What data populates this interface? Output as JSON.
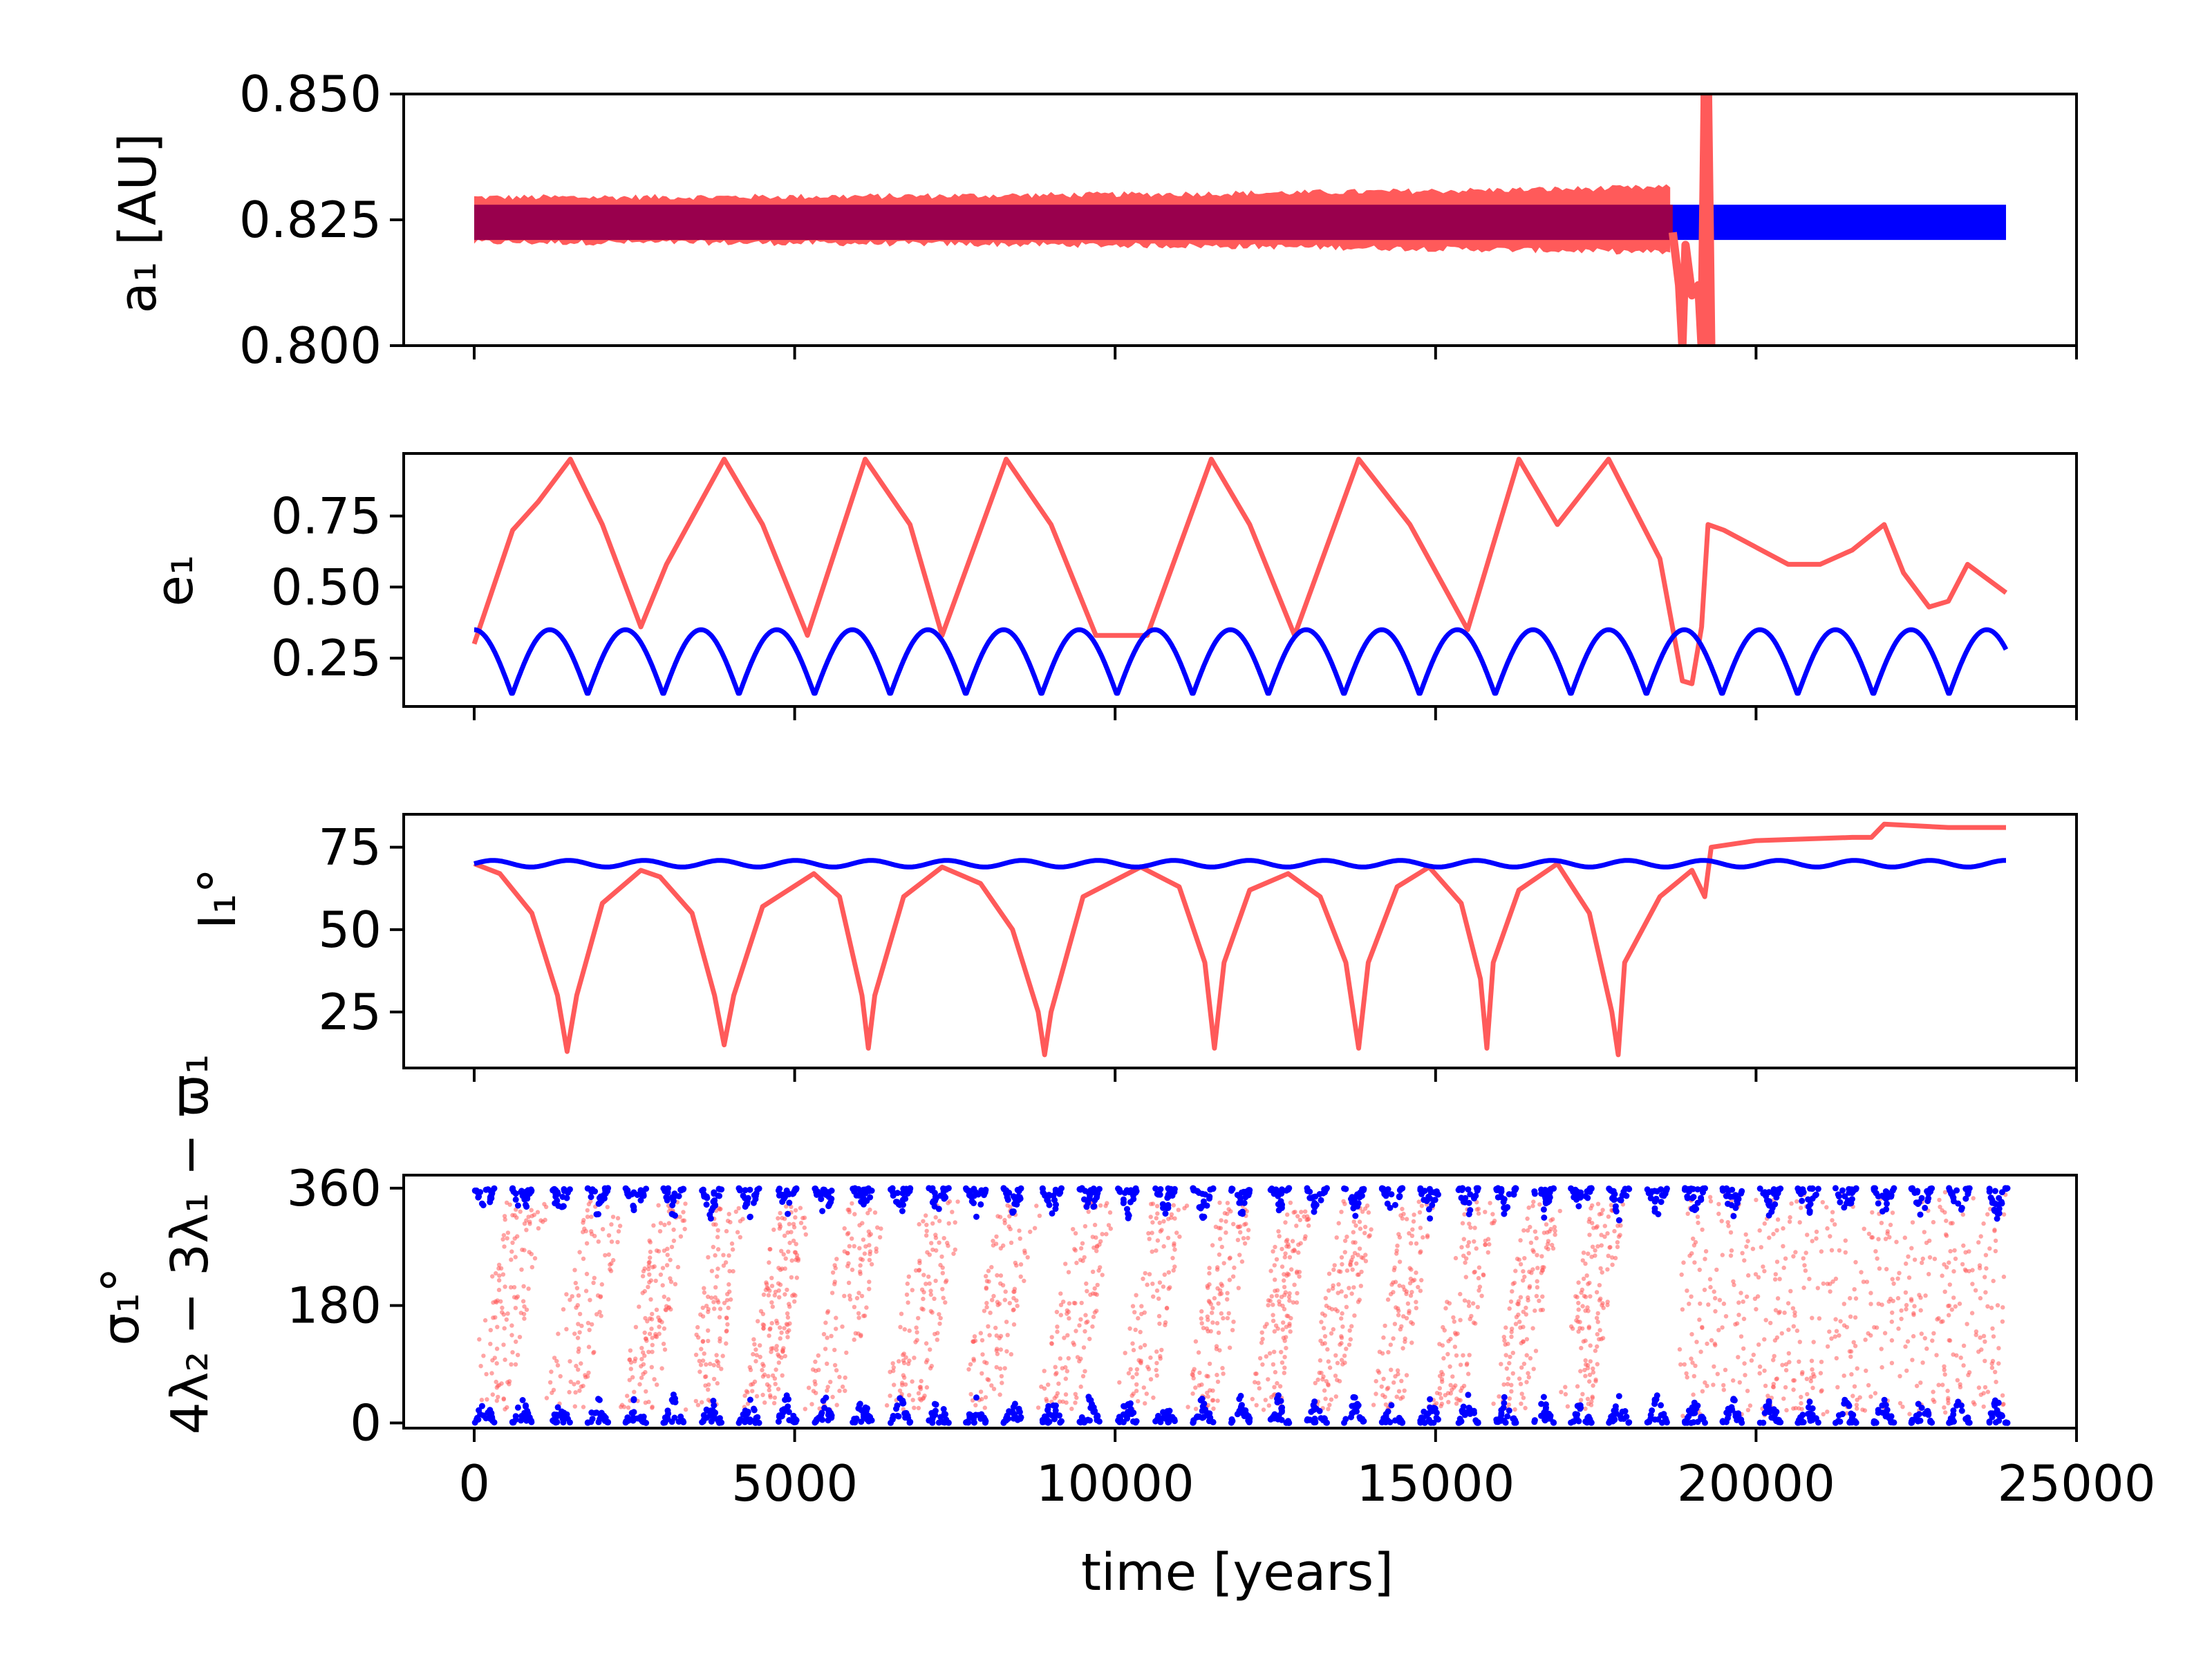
{
  "colors": {
    "red_series": "#ff5a5a",
    "blue_series": "#0000ff",
    "overlap": "#99004d",
    "axes": "#000000"
  },
  "chart_data": [
    {
      "type": "line",
      "panel": "semi-major axis",
      "ylabel": "a₁ [AU]",
      "ylim": [
        0.8,
        0.85
      ],
      "yticks": [
        0.8,
        0.825,
        0.85
      ],
      "ytick_labels": [
        "0.800",
        "0.825",
        "0.850"
      ],
      "xlim": [
        -1100,
        25000
      ],
      "series": [
        {
          "name": "red",
          "band_center": 0.825,
          "band_half_width_start": 0.0045,
          "band_half_width_end": 0.0065,
          "end_of_band": 18700,
          "spike": {
            "x": [
              18700,
              18800,
              18850,
              18900,
              19000,
              19100,
              19150,
              19200,
              19250,
              19300
            ],
            "y": [
              0.8225,
              0.812,
              0.8,
              0.82,
              0.81,
              0.812,
              0.8,
              0.85,
              0.85,
              0.8
            ]
          }
        },
        {
          "name": "blue",
          "band_center": 0.8245,
          "band_half_width": 0.0035,
          "x_range": [
            0,
            23900
          ]
        }
      ]
    },
    {
      "type": "line",
      "panel": "eccentricity",
      "ylabel": "e₁",
      "ylim": [
        0.08,
        0.97
      ],
      "yticks": [
        0.25,
        0.5,
        0.75
      ],
      "ytick_labels": [
        "0.25",
        "0.50",
        "0.75"
      ],
      "xlim": [
        -1100,
        25000
      ],
      "series": [
        {
          "name": "red",
          "x": [
            0,
            600,
            1000,
            1500,
            2000,
            2600,
            3000,
            3900,
            4500,
            5200,
            6100,
            6800,
            7300,
            8300,
            9000,
            9700,
            10500,
            11500,
            12100,
            12800,
            13800,
            14600,
            15500,
            16300,
            16900,
            17700,
            18500,
            18850,
            19000,
            19150,
            19250,
            19500,
            20000,
            20500,
            21000,
            21500,
            22000,
            22300,
            22700,
            23000,
            23300,
            23900
          ],
          "y": [
            0.3,
            0.7,
            0.8,
            0.95,
            0.72,
            0.36,
            0.58,
            0.95,
            0.72,
            0.33,
            0.95,
            0.72,
            0.33,
            0.95,
            0.72,
            0.33,
            0.33,
            0.95,
            0.72,
            0.33,
            0.95,
            0.72,
            0.35,
            0.95,
            0.72,
            0.95,
            0.6,
            0.17,
            0.16,
            0.36,
            0.72,
            0.7,
            0.64,
            0.58,
            0.58,
            0.63,
            0.72,
            0.55,
            0.43,
            0.45,
            0.58,
            0.48
          ]
        },
        {
          "name": "blue",
          "oscillation": {
            "min": 0.12,
            "max": 0.35,
            "period": 1180,
            "x_range": [
              0,
              23900
            ]
          }
        }
      ]
    },
    {
      "type": "line",
      "panel": "inclination",
      "ylabel": "I₁°",
      "ylim": [
        8,
        85
      ],
      "yticks": [
        25,
        50,
        75
      ],
      "ytick_labels": [
        "25",
        "50",
        "75"
      ],
      "xlim": [
        -1100,
        25000
      ],
      "series": [
        {
          "name": "red",
          "x": [
            0,
            400,
            900,
            1300,
            1450,
            1600,
            2000,
            2600,
            2900,
            3400,
            3750,
            3900,
            4050,
            4500,
            5300,
            5700,
            6050,
            6150,
            6250,
            6700,
            7300,
            7900,
            8400,
            8800,
            8900,
            9000,
            9500,
            10400,
            11000,
            11400,
            11550,
            11700,
            12100,
            12700,
            13200,
            13600,
            13800,
            13950,
            14400,
            14900,
            15400,
            15700,
            15800,
            15900,
            16300,
            16900,
            17400,
            17750,
            17850,
            17950,
            18500,
            19000,
            19200,
            19300,
            20000,
            21500,
            21800,
            22000,
            23000,
            23900
          ],
          "y": [
            70,
            67,
            55,
            30,
            13,
            30,
            58,
            68,
            66,
            55,
            30,
            15,
            30,
            57,
            67,
            60,
            30,
            14,
            30,
            60,
            69,
            64,
            50,
            25,
            12,
            25,
            60,
            69,
            63,
            40,
            14,
            40,
            62,
            67,
            60,
            40,
            14,
            40,
            63,
            69,
            58,
            35,
            14,
            40,
            62,
            70,
            55,
            25,
            12,
            40,
            60,
            68,
            60,
            75,
            77,
            78,
            78,
            82,
            81,
            81
          ]
        },
        {
          "name": "blue",
          "oscillation": {
            "center": 70,
            "amplitude": 1,
            "period": 1180,
            "x_range": [
              0,
              23900
            ]
          }
        }
      ]
    },
    {
      "type": "scatter",
      "panel": "resonant angle",
      "ylabel_line1": "σ₁°",
      "ylabel_line2": "4λ₂ − 3λ₁ − ϖ₁",
      "ylim": [
        -8,
        380
      ],
      "yticks": [
        0,
        180,
        360
      ],
      "ytick_labels": [
        "0",
        "180",
        "360"
      ],
      "xlim": [
        -1100,
        25000
      ],
      "xticks": [
        0,
        5000,
        10000,
        15000,
        20000,
        25000
      ],
      "xtick_labels": [
        "0",
        "5000",
        "10000",
        "15000",
        "20000",
        "25000"
      ],
      "xlabel": "time [years]",
      "series": [
        {
          "name": "red",
          "description": "circulating angle, dense points",
          "x_range": [
            0,
            23900
          ],
          "y_range": [
            0,
            360
          ]
        },
        {
          "name": "blue",
          "description": "triangular clusters near 0 and 360",
          "period": 590,
          "x_range": [
            0,
            23900
          ]
        }
      ]
    }
  ]
}
